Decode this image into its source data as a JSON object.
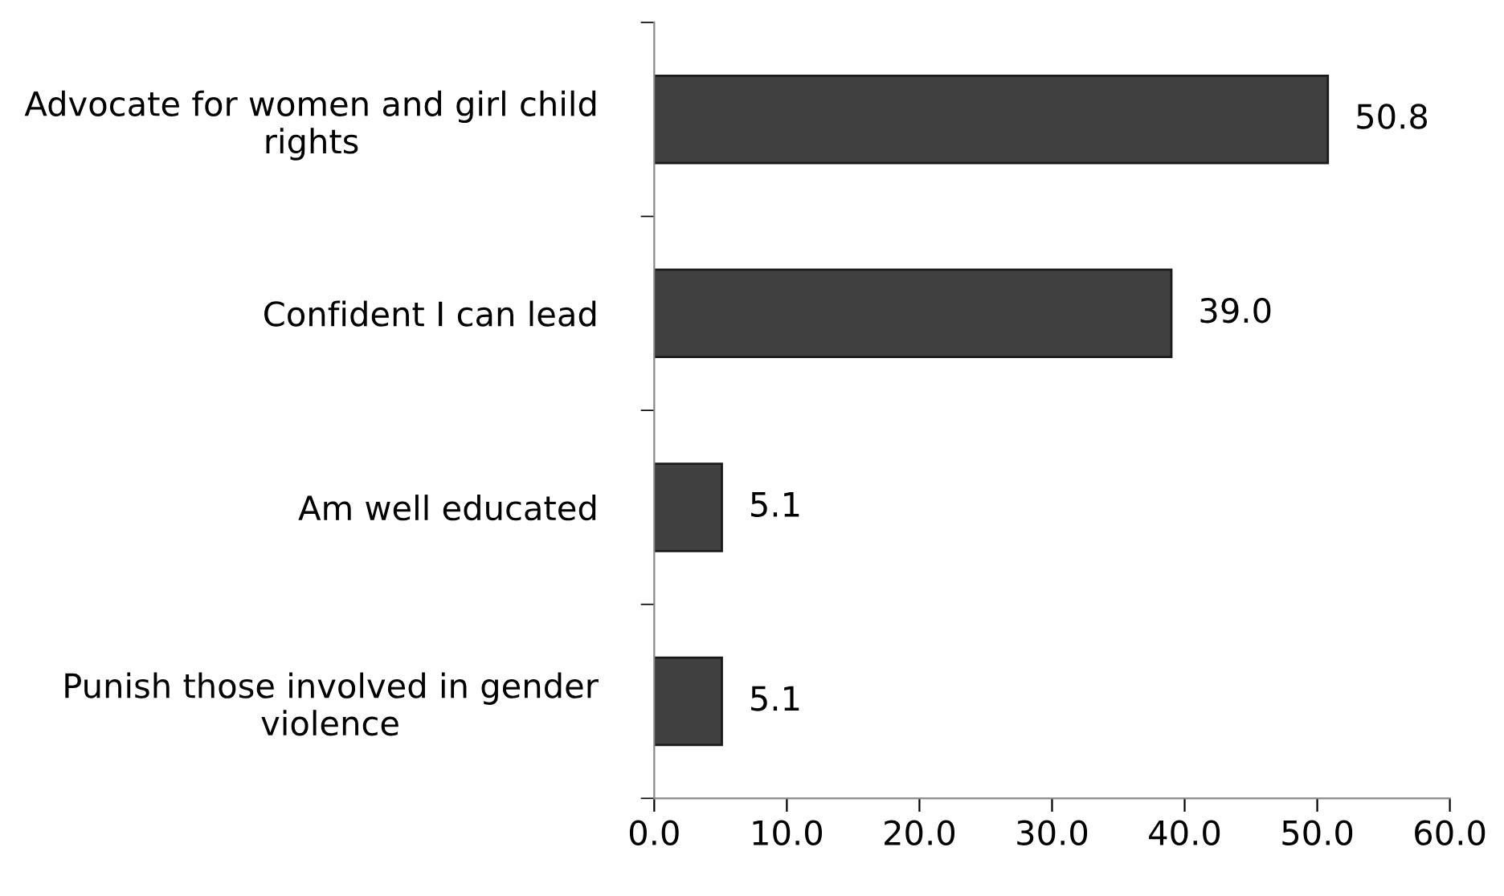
{
  "chart_data": {
    "type": "bar",
    "orientation": "horizontal",
    "categories": [
      "Advocate for women and girl child\nrights",
      "Confident I can lead",
      "Am well educated",
      "Punish those involved in gender\nviolence"
    ],
    "values": [
      50.8,
      39.0,
      5.1,
      5.1
    ],
    "value_labels": [
      "50.8",
      "39.0",
      "5.1",
      "5.1"
    ],
    "color": "#404040",
    "xlim": [
      0,
      60
    ],
    "xticks": [
      {
        "value": 0,
        "label": "0.0"
      },
      {
        "value": 10,
        "label": "10.0"
      },
      {
        "value": 20,
        "label": "20.0"
      },
      {
        "value": 30,
        "label": "30.0"
      },
      {
        "value": 40,
        "label": "40.0"
      },
      {
        "value": 50,
        "label": "50.0"
      },
      {
        "value": 60,
        "label": "60.0"
      }
    ],
    "grid": false,
    "legend": false
  }
}
